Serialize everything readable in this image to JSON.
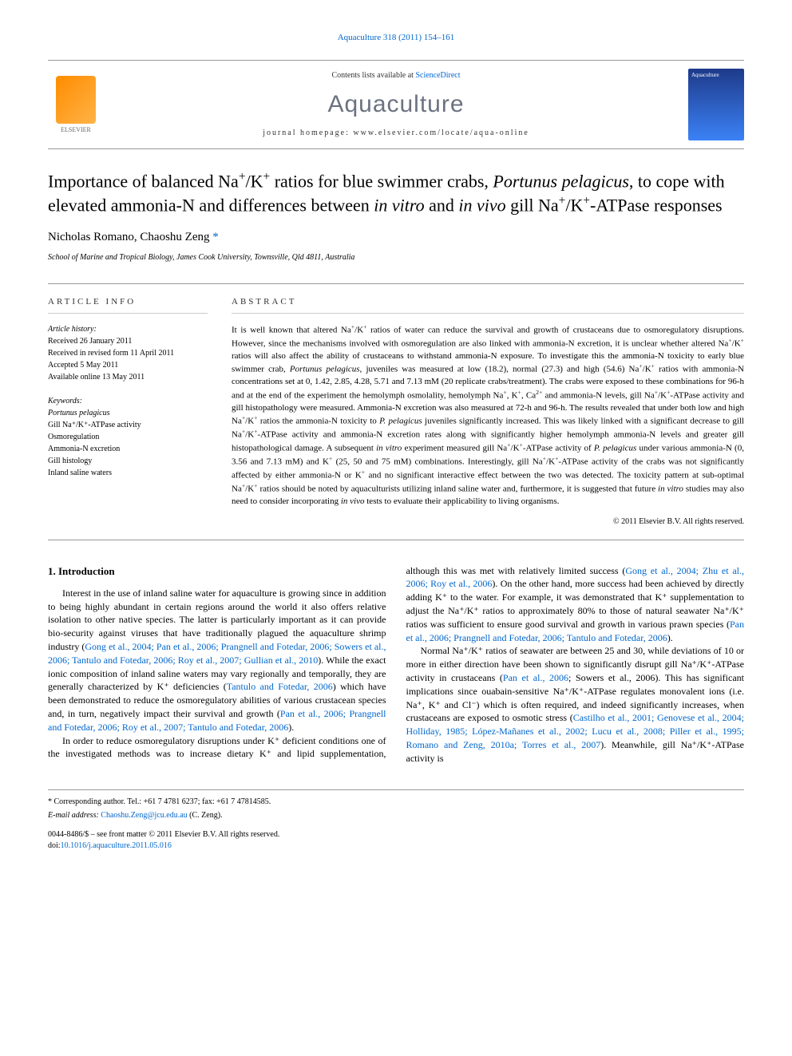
{
  "top_citation": {
    "journal": "Aquaculture",
    "vol": "318",
    "year": "2011",
    "pages": "154–161"
  },
  "header": {
    "contents_prefix": "Contents lists available at ",
    "contents_link": "ScienceDirect",
    "journal_name": "Aquaculture",
    "homepage_label": "journal homepage: ",
    "homepage_url": "www.elsevier.com/locate/aqua-online",
    "elsevier_label": "ELSEVIER"
  },
  "title": "Importance of balanced Na⁺/K⁺ ratios for blue swimmer crabs, Portunus pelagicus, to cope with elevated ammonia-N and differences between in vitro and in vivo gill Na⁺/K⁺-ATPase responses",
  "authors": "Nicholas Romano, Chaoshu Zeng ",
  "author_mark": "*",
  "affiliation": "School of Marine and Tropical Biology, James Cook University, Townsville, Qld 4811, Australia",
  "article_info": {
    "label": "ARTICLE INFO",
    "history_label": "Article history:",
    "received": "Received 26 January 2011",
    "revised": "Received in revised form 11 April 2011",
    "accepted": "Accepted 5 May 2011",
    "available": "Available online 13 May 2011",
    "keywords_label": "Keywords:",
    "keywords": [
      "Portunus pelagicus",
      "Gill Na⁺/K⁺-ATPase activity",
      "Osmoregulation",
      "Ammonia-N excretion",
      "Gill histology",
      "Inland saline waters"
    ]
  },
  "abstract": {
    "label": "ABSTRACT",
    "text": "It is well known that altered Na⁺/K⁺ ratios of water can reduce the survival and growth of crustaceans due to osmoregulatory disruptions. However, since the mechanisms involved with osmoregulation are also linked with ammonia-N excretion, it is unclear whether altered Na⁺/K⁺ ratios will also affect the ability of crustaceans to withstand ammonia-N exposure. To investigate this the ammonia-N toxicity to early blue swimmer crab, Portunus pelagicus, juveniles was measured at low (18.2), normal (27.3) and high (54.6) Na⁺/K⁺ ratios with ammonia-N concentrations set at 0, 1.42, 2.85, 4.28, 5.71 and 7.13 mM (20 replicate crabs/treatment). The crabs were exposed to these combinations for 96-h and at the end of the experiment the hemolymph osmolality, hemolymph Na⁺, K⁺, Ca²⁺ and ammonia-N levels, gill Na⁺/K⁺-ATPase activity and gill histopathology were measured. Ammonia-N excretion was also measured at 72-h and 96-h. The results revealed that under both low and high Na⁺/K⁺ ratios the ammonia-N toxicity to P. pelagicus juveniles significantly increased. This was likely linked with a significant decrease to gill Na⁺/K⁺-ATPase activity and ammonia-N excretion rates along with significantly higher hemolymph ammonia-N levels and greater gill histopathological damage. A subsequent in vitro experiment measured gill Na⁺/K⁺-ATPase activity of P. pelagicus under various ammonia-N (0, 3.56 and 7.13 mM) and K⁺ (25, 50 and 75 mM) combinations. Interestingly, gill Na⁺/K⁺-ATPase activity of the crabs was not significantly affected by either ammonia-N or K⁺ and no significant interactive effect between the two was detected. The toxicity pattern at sub-optimal Na⁺/K⁺ ratios should be noted by aquaculturists utilizing inland saline water and, furthermore, it is suggested that future in vitro studies may also need to consider incorporating in vivo tests to evaluate their applicability to living organisms.",
    "copyright": "© 2011 Elsevier B.V. All rights reserved."
  },
  "body": {
    "section_no": "1.",
    "section_title": "Introduction",
    "para1_a": "Interest in the use of inland saline water for aquaculture is growing since in addition to being highly abundant in certain regions around the world it also offers relative isolation to other native species. The latter is particularly important as it can provide bio-security against viruses that have traditionally plagued the aquaculture shrimp industry (",
    "para1_cite1": "Gong et al., 2004; Pan et al., 2006; Prangnell and Fotedar, 2006; Sowers et al., 2006; Tantulo and Fotedar, 2006; Roy et al., 2007; Gullian et al., 2010",
    "para1_b": "). While the exact ionic composition of inland saline waters may vary regionally and temporally, they are generally characterized by K⁺ deficiencies (",
    "para1_cite2": "Tantulo and Fotedar, 2006",
    "para1_c": ") which have been demonstrated to reduce the osmoregulatory abilities of various crustacean species and, in turn, negatively impact their survival and growth (",
    "para1_cite3": "Pan et al., 2006; Prangnell and Fotedar, 2006; Roy et al., 2007; Tantulo and Fotedar, 2006",
    "para1_d": ").",
    "para2_a": "In order to reduce osmoregulatory disruptions under K⁺ deficient conditions one of the investigated methods was to increase dietary K⁺ and lipid supplementation, although this was met with relatively limited success (",
    "para2_cite1": "Gong et al., 2004; Zhu et al., 2006; Roy et al., 2006",
    "para2_b": "). On the other hand, more success had been achieved by directly adding K⁺ to the water. For example, it was demonstrated that K⁺ supplementation to adjust the Na⁺/K⁺ ratios to approximately 80% to those of natural seawater Na⁺/K⁺ ratios was sufficient to ensure good survival and growth in various prawn species (",
    "para2_cite2": "Pan et al., 2006; Prangnell and Fotedar, 2006; Tantulo and Fotedar, 2006",
    "para2_c": ").",
    "para3_a": "Normal Na⁺/K⁺ ratios of seawater are between 25 and 30, while deviations of 10 or more in either direction have been shown to significantly disrupt gill Na⁺/K⁺-ATPase activity in crustaceans (",
    "para3_cite1": "Pan et al., 2006",
    "para3_b": "; Sowers et al., 2006). This has significant implications since ouabain-sensitive Na⁺/K⁺-ATPase regulates monovalent ions (i.e. Na⁺, K⁺ and Cl⁻) which is often required, and indeed significantly increases, when crustaceans are exposed to osmotic stress (",
    "para3_cite2": "Castilho et al., 2001; Genovese et al., 2004; Holliday, 1985; López-Mañanes et al., 2002; Lucu et al., 2008; Piller et al., 1995; Romano and Zeng, 2010a; Torres et al., 2007",
    "para3_c": "). Meanwhile, gill Na⁺/K⁺-ATPase activity is"
  },
  "footer": {
    "corresponding": "* Corresponding author. Tel.: +61 7 4781 6237; fax: +61 7 47814585.",
    "email_label": "E-mail address: ",
    "email": "Chaoshu.Zeng@jcu.edu.au",
    "email_suffix": " (C. Zeng).",
    "issn": "0044-8486/$ – see front matter © 2011 Elsevier B.V. All rights reserved.",
    "doi_label": "doi:",
    "doi": "10.1016/j.aquaculture.2011.05.016"
  },
  "colors": {
    "link": "#0066cc",
    "text": "#000000",
    "journal_gray": "#6b7280",
    "border": "#999999"
  }
}
